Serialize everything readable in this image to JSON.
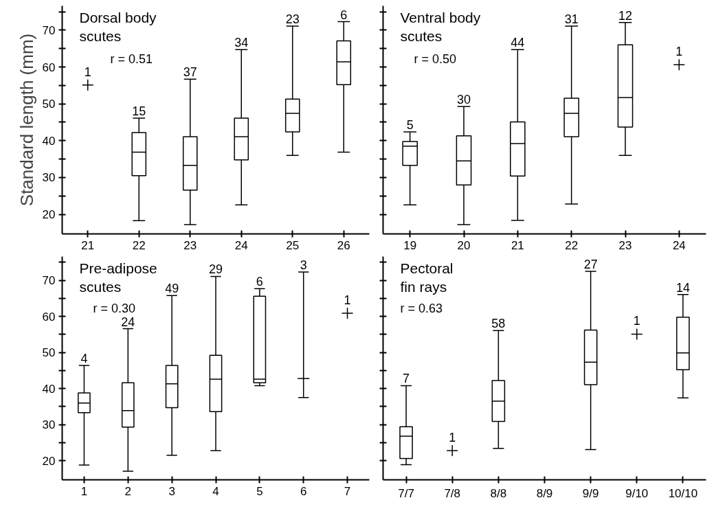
{
  "chart_data": [
    {
      "type": "box",
      "title": "Dorsal body\nscutes",
      "ylabel": "Standard length (mm)",
      "categories": [
        "21",
        "22",
        "23",
        "24",
        "25",
        "26"
      ],
      "color": "#000000",
      "boxes": [
        null,
        {
          "low": 18.3,
          "q1": 30.5,
          "median": 36.9,
          "q3": 42.2,
          "high": 46.1
        },
        {
          "low": 17.2,
          "q1": 26.6,
          "median": 33.3,
          "q3": 41.1,
          "high": 56.7
        },
        {
          "low": 22.6,
          "q1": 34.8,
          "median": 41.1,
          "q3": 46.1,
          "high": 64.7
        },
        {
          "low": 36.0,
          "q1": 42.4,
          "median": 47.4,
          "q3": 51.3,
          "high": 71.1
        },
        {
          "low": 36.9,
          "q1": 55.2,
          "median": 61.4,
          "q3": 67.1,
          "high": 72.3
        }
      ],
      "series": [
        {
          "type": "scatter",
          "marker": "cross",
          "color": "#000000",
          "x": [
            "21"
          ],
          "values": [
            55.1
          ]
        }
      ],
      "ylim": [
        14.7,
        76.6
      ],
      "yticks": [
        20,
        {
          "value": 25,
          "label": null
        },
        30,
        {
          "value": 35,
          "label": null
        },
        40,
        {
          "value": 45,
          "label": null
        },
        50,
        {
          "value": 55,
          "label": null
        },
        60,
        {
          "value": 65,
          "label": null
        },
        70,
        {
          "value": 75,
          "label": null
        }
      ],
      "annotations": [
        "r = 0.51",
        {
          "text": "1",
          "x": "21",
          "y": 55.1
        },
        {
          "text": "15",
          "x": "22",
          "y": 46.1
        },
        {
          "text": "37",
          "x": "23",
          "y": 56.7
        },
        {
          "text": "34",
          "x": "24",
          "y": 64.7
        },
        {
          "text": "23",
          "x": "25",
          "y": 71.1
        },
        {
          "text": "6",
          "x": "26",
          "y": 72.3
        }
      ]
    },
    {
      "type": "box",
      "title": "Ventral body\nscutes",
      "categories": [
        "19",
        "20",
        "21",
        "22",
        "23",
        "24"
      ],
      "color": "#000000",
      "boxes": [
        {
          "low": 22.6,
          "q1": 33.3,
          "median": 38.5,
          "q3": 39.8,
          "high": 42.4
        },
        {
          "low": 17.2,
          "q1": 28.0,
          "median": 34.5,
          "q3": 41.3,
          "high": 49.3
        },
        {
          "low": 18.4,
          "q1": 30.4,
          "median": 39.2,
          "q3": 45.1,
          "high": 64.7
        },
        {
          "low": 22.8,
          "q1": 41.1,
          "median": 47.4,
          "q3": 51.5,
          "high": 71.1
        },
        {
          "low": 36.0,
          "q1": 43.7,
          "median": 51.7,
          "q3": 66.0,
          "high": 72.1
        },
        null
      ],
      "series": [
        {
          "type": "scatter",
          "marker": "cross",
          "color": "#000000",
          "x": [
            "24"
          ],
          "values": [
            60.6
          ]
        }
      ],
      "ylim": [
        14.7,
        76.6
      ],
      "yticks": [
        20,
        {
          "value": 25,
          "label": null
        },
        30,
        {
          "value": 35,
          "label": null
        },
        40,
        {
          "value": 45,
          "label": null
        },
        50,
        {
          "value": 55,
          "label": null
        },
        60,
        {
          "value": 65,
          "label": null
        },
        70,
        {
          "value": 75,
          "label": null
        }
      ],
      "tick_labels": "x",
      "annotations": [
        "r = 0.50",
        {
          "text": "5",
          "x": "19",
          "y": 42.4
        },
        {
          "text": "30",
          "x": "20",
          "y": 49.3
        },
        {
          "text": "44",
          "x": "21",
          "y": 64.7
        },
        {
          "text": "31",
          "x": "22",
          "y": 71.1
        },
        {
          "text": "12",
          "x": "23",
          "y": 72.1
        },
        {
          "text": "1",
          "x": "24",
          "y": 60.6
        }
      ]
    },
    {
      "type": "box",
      "title": "Pre-adipose\nscutes",
      "categories": [
        "1",
        "2",
        "3",
        "4",
        "5",
        "6",
        "7"
      ],
      "color": "#000000",
      "boxes": [
        {
          "low": 18.8,
          "q1": 33.3,
          "median": 36.0,
          "q3": 38.8,
          "high": 46.4
        },
        {
          "low": 17.1,
          "q1": 29.3,
          "median": 33.9,
          "q3": 41.6,
          "high": 56.6
        },
        {
          "low": 21.5,
          "q1": 34.7,
          "median": 41.3,
          "q3": 46.4,
          "high": 65.8
        },
        {
          "low": 22.8,
          "q1": 33.6,
          "median": 42.6,
          "q3": 49.2,
          "high": 71.1
        },
        {
          "low": 40.8,
          "q1": 41.6,
          "median": 42.6,
          "q3": 65.6,
          "high": 67.7
        },
        {
          "low": 37.5,
          "q1": 42.8,
          "median": 42.8,
          "q3": 42.8,
          "high": 72.3
        },
        null
      ],
      "series": [
        {
          "type": "scatter",
          "marker": "cross",
          "color": "#000000",
          "x": [
            "7"
          ],
          "values": [
            60.9
          ]
        }
      ],
      "ylim": [
        14.7,
        76.6
      ],
      "yticks": [
        20,
        {
          "value": 25,
          "label": null
        },
        30,
        {
          "value": 35,
          "label": null
        },
        40,
        {
          "value": 45,
          "label": null
        },
        50,
        {
          "value": 55,
          "label": null
        },
        60,
        {
          "value": 65,
          "label": null
        },
        70,
        {
          "value": 75,
          "label": null
        }
      ],
      "annotations": [
        "r = 0.30",
        {
          "text": "4",
          "x": "1",
          "y": 46.4
        },
        {
          "text": "24",
          "x": "2",
          "y": 56.6
        },
        {
          "text": "49",
          "x": "3",
          "y": 65.8
        },
        {
          "text": "29",
          "x": "4",
          "y": 71.1
        },
        {
          "text": "6",
          "x": "5",
          "y": 67.7
        },
        {
          "text": "3",
          "x": "6",
          "y": 72.3
        },
        {
          "text": "1",
          "x": "7",
          "y": 60.9
        }
      ]
    },
    {
      "type": "box",
      "title": "Pectoral\nfin rays",
      "categories": [
        "7/7",
        "7/8",
        "8/8",
        "8/9",
        "9/9",
        "9/10",
        "10/10"
      ],
      "color": "#000000",
      "boxes": [
        {
          "low": 18.9,
          "q1": 20.6,
          "median": 26.8,
          "q3": 29.4,
          "high": 40.8
        },
        null,
        {
          "low": 23.4,
          "q1": 30.9,
          "median": 36.5,
          "q3": 42.2,
          "high": 56.1
        },
        null,
        {
          "low": 23.1,
          "q1": 41.1,
          "median": 47.3,
          "q3": 56.2,
          "high": 72.5
        },
        null,
        {
          "low": 37.4,
          "q1": 45.2,
          "median": 49.9,
          "q3": 59.8,
          "high": 66.1
        }
      ],
      "series": [
        {
          "type": "scatter",
          "marker": "cross",
          "color": "#000000",
          "x": [
            "7/8",
            "9/10"
          ],
          "values": [
            22.8,
            55.1
          ]
        }
      ],
      "ylim": [
        14.7,
        76.6
      ],
      "yticks": [
        20,
        {
          "value": 25,
          "label": null
        },
        30,
        {
          "value": 35,
          "label": null
        },
        40,
        {
          "value": 45,
          "label": null
        },
        50,
        {
          "value": 55,
          "label": null
        },
        60,
        {
          "value": 65,
          "label": null
        },
        70,
        {
          "value": 75,
          "label": null
        }
      ],
      "tick_labels": "x",
      "annotations": [
        "r = 0.63",
        {
          "text": "7",
          "x": "7/7",
          "y": 40.8
        },
        {
          "text": "1",
          "x": "7/8",
          "y": 22.8
        },
        {
          "text": "58",
          "x": "8/8",
          "y": 56.1
        },
        {
          "text": "27",
          "x": "9/9",
          "y": 72.5
        },
        {
          "text": "1",
          "x": "9/10",
          "y": 55.1
        },
        {
          "text": "14",
          "x": "10/10",
          "y": 66.1
        }
      ]
    }
  ]
}
